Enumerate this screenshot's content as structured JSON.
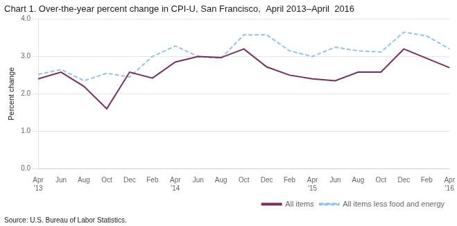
{
  "chart_data": {
    "type": "line",
    "title": "Chart 1. Over-the-year percent change in CPI-U, San Francisco,  April 2013–April  2016",
    "ylabel": "Percent change",
    "source": "Source: U.S. Bureau of Labor Statistics.",
    "categories": [
      "Apr\n'13",
      "Jun",
      "Aug",
      "Oct",
      "Dec",
      "Feb",
      "Apr\n'14",
      "Jun",
      "Aug",
      "Oct",
      "Dec",
      "Feb",
      "Apr\n'15",
      "Jun",
      "Aug",
      "Oct",
      "Dec",
      "Feb",
      "Apr\n'16"
    ],
    "series": [
      {
        "name": "All items",
        "color": "#7B2D5E",
        "line_style": "solid",
        "values": [
          2.4,
          2.58,
          2.2,
          1.6,
          2.58,
          2.42,
          2.85,
          3.0,
          2.97,
          3.2,
          2.72,
          2.5,
          2.4,
          2.35,
          2.58,
          2.58,
          3.2,
          2.95,
          2.7
        ]
      },
      {
        "name": "All items less food and energy",
        "color": "#92C5E8",
        "line_style": "dashed",
        "values": [
          2.52,
          2.65,
          2.35,
          2.55,
          2.45,
          3.0,
          3.28,
          3.0,
          2.95,
          3.58,
          3.58,
          3.15,
          3.0,
          3.25,
          3.15,
          3.12,
          3.65,
          3.55,
          3.2
        ]
      }
    ],
    "ylim": [
      0.0,
      4.0
    ],
    "yticks": [
      {
        "value": 0.0,
        "label": "0.0"
      },
      {
        "value": 1.0,
        "label": "1.0"
      },
      {
        "value": 2.0,
        "label": "2.0"
      },
      {
        "value": 3.0,
        "label": "3.0"
      },
      {
        "value": 4.0,
        "label": "4.0"
      }
    ],
    "grid": true,
    "legend": "lower right"
  }
}
